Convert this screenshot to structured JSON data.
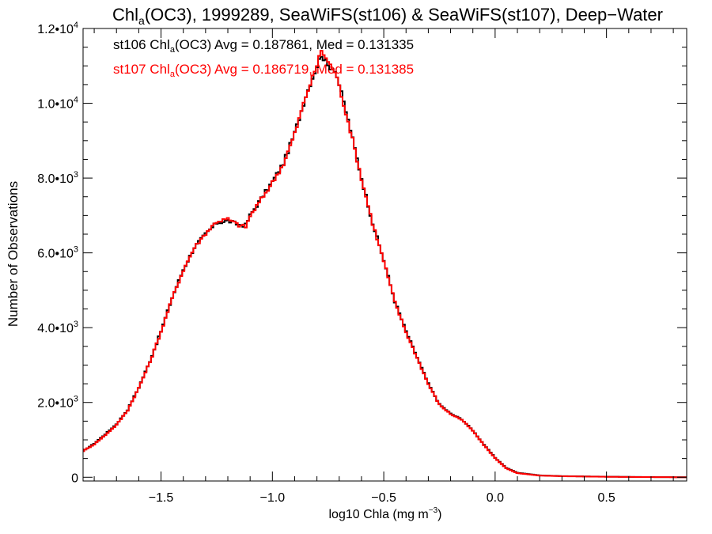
{
  "chart_data": {
    "type": "line",
    "title": {
      "pre": "Chl",
      "sub": "a",
      "post": "(OC3), 1999289, SeaWiFS(st106) & SeaWiFS(st107), Deep−Water"
    },
    "xlabel": {
      "pre": "log10 Chla (mg m",
      "sup": "−3",
      "post": ")"
    },
    "ylabel": "Number of Observations",
    "xlim": [
      -1.85,
      0.86
    ],
    "ylim": [
      -100,
      12000
    ],
    "x_ticks": [
      {
        "value": -1.5,
        "label": "−1.5"
      },
      {
        "value": -1.0,
        "label": "−1.0"
      },
      {
        "value": -0.5,
        "label": "−0.5"
      },
      {
        "value": 0.0,
        "label": "0.0"
      },
      {
        "value": 0.5,
        "label": "0.5"
      }
    ],
    "y_ticks": [
      {
        "value": 0,
        "mant": "0",
        "exp": ""
      },
      {
        "value": 2000,
        "mant": "2.0•10",
        "exp": "3"
      },
      {
        "value": 4000,
        "mant": "4.0•10",
        "exp": "3"
      },
      {
        "value": 6000,
        "mant": "6.0•10",
        "exp": "3"
      },
      {
        "value": 8000,
        "mant": "8.0•10",
        "exp": "3"
      },
      {
        "value": 10000,
        "mant": "1.0•10",
        "exp": "4"
      },
      {
        "value": 12000,
        "mant": "1.2•10",
        "exp": "4"
      }
    ],
    "annotations": [
      {
        "pre": "st106 Chl",
        "sub": "a",
        "post": "(OC3) Avg = 0.187861, Med = 0.131335",
        "color": "#000000"
      },
      {
        "pre": "st107 Chl",
        "sub": "a",
        "post": "(OC3) Avg = 0.186719, Med = 0.131385",
        "color": "#ff0000"
      }
    ],
    "series": [
      {
        "color": "#000000",
        "points": [
          [
            -1.85,
            700
          ],
          [
            -1.8,
            900
          ],
          [
            -1.75,
            1150
          ],
          [
            -1.7,
            1420
          ],
          [
            -1.65,
            1800
          ],
          [
            -1.6,
            2400
          ],
          [
            -1.55,
            3100
          ],
          [
            -1.5,
            3900
          ],
          [
            -1.45,
            4800
          ],
          [
            -1.4,
            5550
          ],
          [
            -1.35,
            6150
          ],
          [
            -1.3,
            6500
          ],
          [
            -1.25,
            6800
          ],
          [
            -1.2,
            6860
          ],
          [
            -1.15,
            6750
          ],
          [
            -1.12,
            6740
          ],
          [
            -1.1,
            7000
          ],
          [
            -1.05,
            7450
          ],
          [
            -1.0,
            7900
          ],
          [
            -0.95,
            8400
          ],
          [
            -0.9,
            9200
          ],
          [
            -0.85,
            10200
          ],
          [
            -0.8,
            11000
          ],
          [
            -0.78,
            11300
          ],
          [
            -0.75,
            11000
          ],
          [
            -0.72,
            10900
          ],
          [
            -0.7,
            10500
          ],
          [
            -0.65,
            9300
          ],
          [
            -0.6,
            8000
          ],
          [
            -0.55,
            6800
          ],
          [
            -0.5,
            5800
          ],
          [
            -0.45,
            4700
          ],
          [
            -0.4,
            3900
          ],
          [
            -0.35,
            3200
          ],
          [
            -0.3,
            2500
          ],
          [
            -0.25,
            1950
          ],
          [
            -0.2,
            1700
          ],
          [
            -0.15,
            1550
          ],
          [
            -0.1,
            1250
          ],
          [
            -0.05,
            870
          ],
          [
            0.0,
            520
          ],
          [
            0.05,
            250
          ],
          [
            0.1,
            120
          ],
          [
            0.2,
            50
          ],
          [
            0.3,
            30
          ],
          [
            0.5,
            15
          ],
          [
            0.7,
            5
          ],
          [
            0.86,
            0
          ]
        ]
      },
      {
        "color": "#ff0000",
        "points": [
          [
            -1.85,
            700
          ],
          [
            -1.8,
            880
          ],
          [
            -1.75,
            1130
          ],
          [
            -1.7,
            1400
          ],
          [
            -1.65,
            1790
          ],
          [
            -1.6,
            2390
          ],
          [
            -1.55,
            3080
          ],
          [
            -1.5,
            3890
          ],
          [
            -1.45,
            4780
          ],
          [
            -1.4,
            5540
          ],
          [
            -1.35,
            6140
          ],
          [
            -1.3,
            6520
          ],
          [
            -1.25,
            6840
          ],
          [
            -1.2,
            6900
          ],
          [
            -1.15,
            6740
          ],
          [
            -1.12,
            6700
          ],
          [
            -1.1,
            6980
          ],
          [
            -1.05,
            7430
          ],
          [
            -1.0,
            7880
          ],
          [
            -0.95,
            8380
          ],
          [
            -0.9,
            9180
          ],
          [
            -0.85,
            10180
          ],
          [
            -0.8,
            11020
          ],
          [
            -0.78,
            11420
          ],
          [
            -0.75,
            11100
          ],
          [
            -0.72,
            10850
          ],
          [
            -0.7,
            10450
          ],
          [
            -0.65,
            9280
          ],
          [
            -0.6,
            7980
          ],
          [
            -0.55,
            6790
          ],
          [
            -0.5,
            5780
          ],
          [
            -0.45,
            4680
          ],
          [
            -0.4,
            3880
          ],
          [
            -0.35,
            3190
          ],
          [
            -0.3,
            2490
          ],
          [
            -0.25,
            1940
          ],
          [
            -0.2,
            1690
          ],
          [
            -0.15,
            1540
          ],
          [
            -0.1,
            1240
          ],
          [
            -0.05,
            860
          ],
          [
            0.0,
            510
          ],
          [
            0.05,
            240
          ],
          [
            0.1,
            110
          ],
          [
            0.2,
            45
          ],
          [
            0.3,
            28
          ],
          [
            0.5,
            12
          ],
          [
            0.7,
            4
          ],
          [
            0.86,
            0
          ]
        ]
      }
    ]
  }
}
